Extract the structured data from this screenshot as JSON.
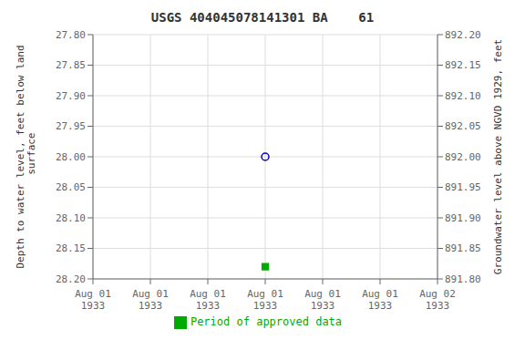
{
  "chart_data": {
    "type": "scatter",
    "title": "USGS 404045078141301 BA    61",
    "x_label": null,
    "y_label": "Depth to water level, feet below land\n surface",
    "y2_label": "Groundwater level above NGVD 1929, feet",
    "categories": [
      "Aug 01\n1933",
      "Aug 01\n1933",
      "Aug 01\n1933",
      "Aug 01\n1933",
      "Aug 01\n1933",
      "Aug 01\n1933",
      "Aug 02\n1933"
    ],
    "series": [
      {
        "color": "#0000cc",
        "marker": "open_circle",
        "values": [
          null,
          null,
          null,
          28.0,
          null,
          null,
          null
        ]
      },
      {
        "name": "Period of approved data",
        "color": "#00aa00",
        "marker": "filled_square",
        "values": [
          null,
          null,
          null,
          28.18,
          null,
          null,
          null
        ]
      }
    ],
    "ylim": [
      28.2,
      27.8
    ],
    "yticks": [
      {
        "value": 27.8,
        "label": "27.80"
      },
      {
        "value": 27.85,
        "label": "27.85"
      },
      {
        "value": 27.9,
        "label": "27.90"
      },
      {
        "value": 27.95,
        "label": "27.95"
      },
      {
        "value": 28.0,
        "label": "28.00"
      },
      {
        "value": 28.05,
        "label": "28.05"
      },
      {
        "value": 28.1,
        "label": "28.10"
      },
      {
        "value": 28.15,
        "label": "28.15"
      },
      {
        "value": 28.2,
        "label": "28.20"
      }
    ],
    "y2lim": [
      891.8,
      892.2
    ],
    "y2ticks": [
      {
        "value": 891.8,
        "label": "891.80"
      },
      {
        "value": 891.85,
        "label": "891.85"
      },
      {
        "value": 891.9,
        "label": "891.90"
      },
      {
        "value": 891.95,
        "label": "891.95"
      },
      {
        "value": 892.0,
        "label": "892.00"
      },
      {
        "value": 892.05,
        "label": "892.05"
      },
      {
        "value": 892.1,
        "label": "892.10"
      },
      {
        "value": 892.15,
        "label": "892.15"
      },
      {
        "value": 892.2,
        "label": "892.20"
      }
    ],
    "grid": true,
    "legend": "bottom"
  }
}
